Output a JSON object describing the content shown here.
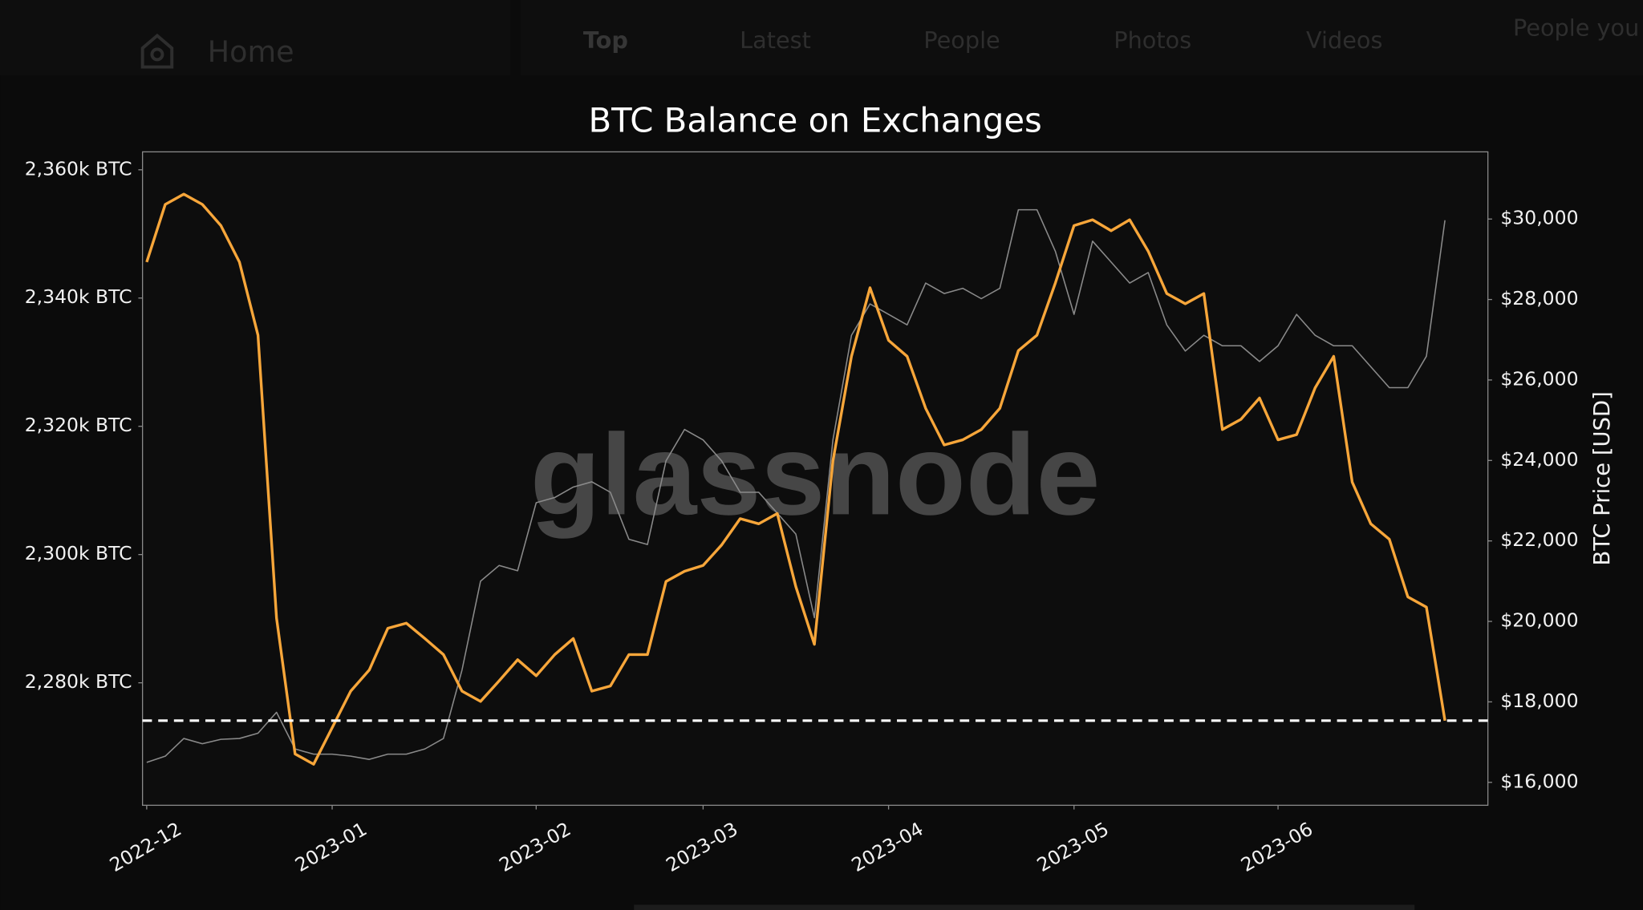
{
  "header": {
    "home": "Home",
    "tabs": [
      "Top",
      "Latest",
      "People",
      "Photos",
      "Videos"
    ],
    "side": "People you f"
  },
  "chart_data": {
    "type": "line",
    "title": "BTC Balance on Exchanges",
    "watermark": "glassnode",
    "y2_label": "BTC Price [USD]",
    "categories": [
      "2022-12",
      null,
      null,
      null,
      null,
      null,
      null,
      null,
      null,
      null,
      "2023-01",
      null,
      null,
      null,
      null,
      null,
      null,
      null,
      null,
      null,
      null,
      "2023-02",
      null,
      null,
      null,
      null,
      null,
      null,
      null,
      null,
      "2023-03",
      null,
      null,
      null,
      null,
      null,
      null,
      null,
      null,
      null,
      "2023-04",
      null,
      null,
      null,
      null,
      null,
      null,
      null,
      null,
      null,
      "2023-05",
      null,
      null,
      null,
      null,
      null,
      null,
      null,
      null,
      null,
      null,
      "2023-06",
      null,
      null,
      null,
      null,
      null,
      null,
      null,
      null,
      null
    ],
    "series": [
      {
        "color": "#f7a63a",
        "axis": "y",
        "values": [
          2345600,
          2354600,
          2356200,
          2354600,
          2351300,
          2345600,
          2334200,
          2290100,
          2268900,
          2267300,
          2273000,
          2278700,
          2282000,
          2288500,
          2289300,
          2286900,
          2284400,
          2278700,
          2277100,
          2280300,
          2283600,
          2281100,
          2284400,
          2286900,
          2278700,
          2279500,
          2284400,
          2284400,
          2295800,
          2297400,
          2298300,
          2301500,
          2305600,
          2304800,
          2306400,
          2295000,
          2286000,
          2314600,
          2330900,
          2341600,
          2333400,
          2330900,
          2322800,
          2317100,
          2317900,
          2319500,
          2322800,
          2331800,
          2334200,
          2342400,
          2351300,
          2352200,
          2350500,
          2352200,
          2347300,
          2340700,
          2339100,
          2340700,
          2319500,
          2321100,
          2324400,
          2317900,
          2318700,
          2326000,
          2330900,
          2311300,
          2304800,
          2302400,
          2293400,
          2291800,
          2274100
        ]
      },
      {
        "color": "#8a8a8a",
        "axis": "y2",
        "values": [
          16496,
          16650,
          17090,
          16960,
          17070,
          17090,
          17220,
          17740,
          16830,
          16700,
          16700,
          16650,
          16570,
          16700,
          16700,
          16830,
          17090,
          18790,
          21000,
          21390,
          21260,
          22950,
          23080,
          23340,
          23470,
          23210,
          22040,
          21910,
          23990,
          24770,
          24510,
          23990,
          23210,
          23210,
          22690,
          22170,
          20090,
          24510,
          27110,
          27890,
          27630,
          27370,
          28410,
          28150,
          28280,
          28020,
          28280,
          30230,
          30230,
          29190,
          27630,
          29450,
          28930,
          28410,
          28670,
          27370,
          26720,
          27110,
          26850,
          26850,
          26460,
          26850,
          27630,
          27110,
          26850,
          26850,
          26330,
          25810,
          25810,
          26590,
          29970
        ]
      }
    ],
    "reference_line": 2274100,
    "ylim": [
      2260900,
      2362800
    ],
    "yticks": [
      {
        "value": 2280000,
        "label": "2,280k BTC"
      },
      {
        "value": 2300000,
        "label": "2,300k BTC"
      },
      {
        "value": 2320000,
        "label": "2,320k BTC"
      },
      {
        "value": 2340000,
        "label": "2,340k BTC"
      },
      {
        "value": 2360000,
        "label": "2,360k BTC"
      }
    ],
    "y2lim": [
      15430,
      31670
    ],
    "y2ticks": [
      {
        "value": 16000,
        "label": "$16,000"
      },
      {
        "value": 18000,
        "label": "$18,000"
      },
      {
        "value": 20000,
        "label": "$20,000"
      },
      {
        "value": 22000,
        "label": "$22,000"
      },
      {
        "value": 24000,
        "label": "$24,000"
      },
      {
        "value": 26000,
        "label": "$26,000"
      },
      {
        "value": 28000,
        "label": "$28,000"
      },
      {
        "value": 30000,
        "label": "$30,000"
      }
    ],
    "grid": false
  }
}
